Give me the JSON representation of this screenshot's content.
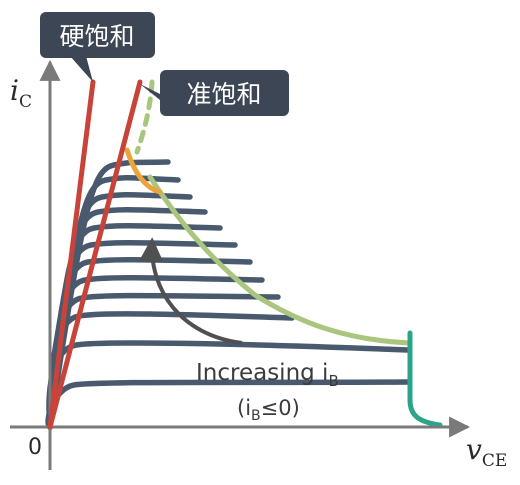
{
  "axes": {
    "y_label": "i",
    "y_sub": "C",
    "x_label": "v",
    "x_sub": "CE",
    "origin": "0"
  },
  "callouts": {
    "hard_saturation": "硬饱和",
    "quasi_saturation": "准饱和"
  },
  "annotation": {
    "line1_main": "Increasing i",
    "line1_sub": "B",
    "line2_pre": "(i",
    "line2_sub": "B",
    "line2_post": "≤0)"
  },
  "colors": {
    "axis": "#7a7a7a",
    "curves": "#4a5a6e",
    "saturation_lines": "#c8443a",
    "boundary": "#a9c57e",
    "quasi_region": "#eba43a",
    "breakdown": "#2ba58a",
    "arrow": "#505050",
    "callout_bg": "#3d4654",
    "callout_text": "#ffffff"
  }
}
